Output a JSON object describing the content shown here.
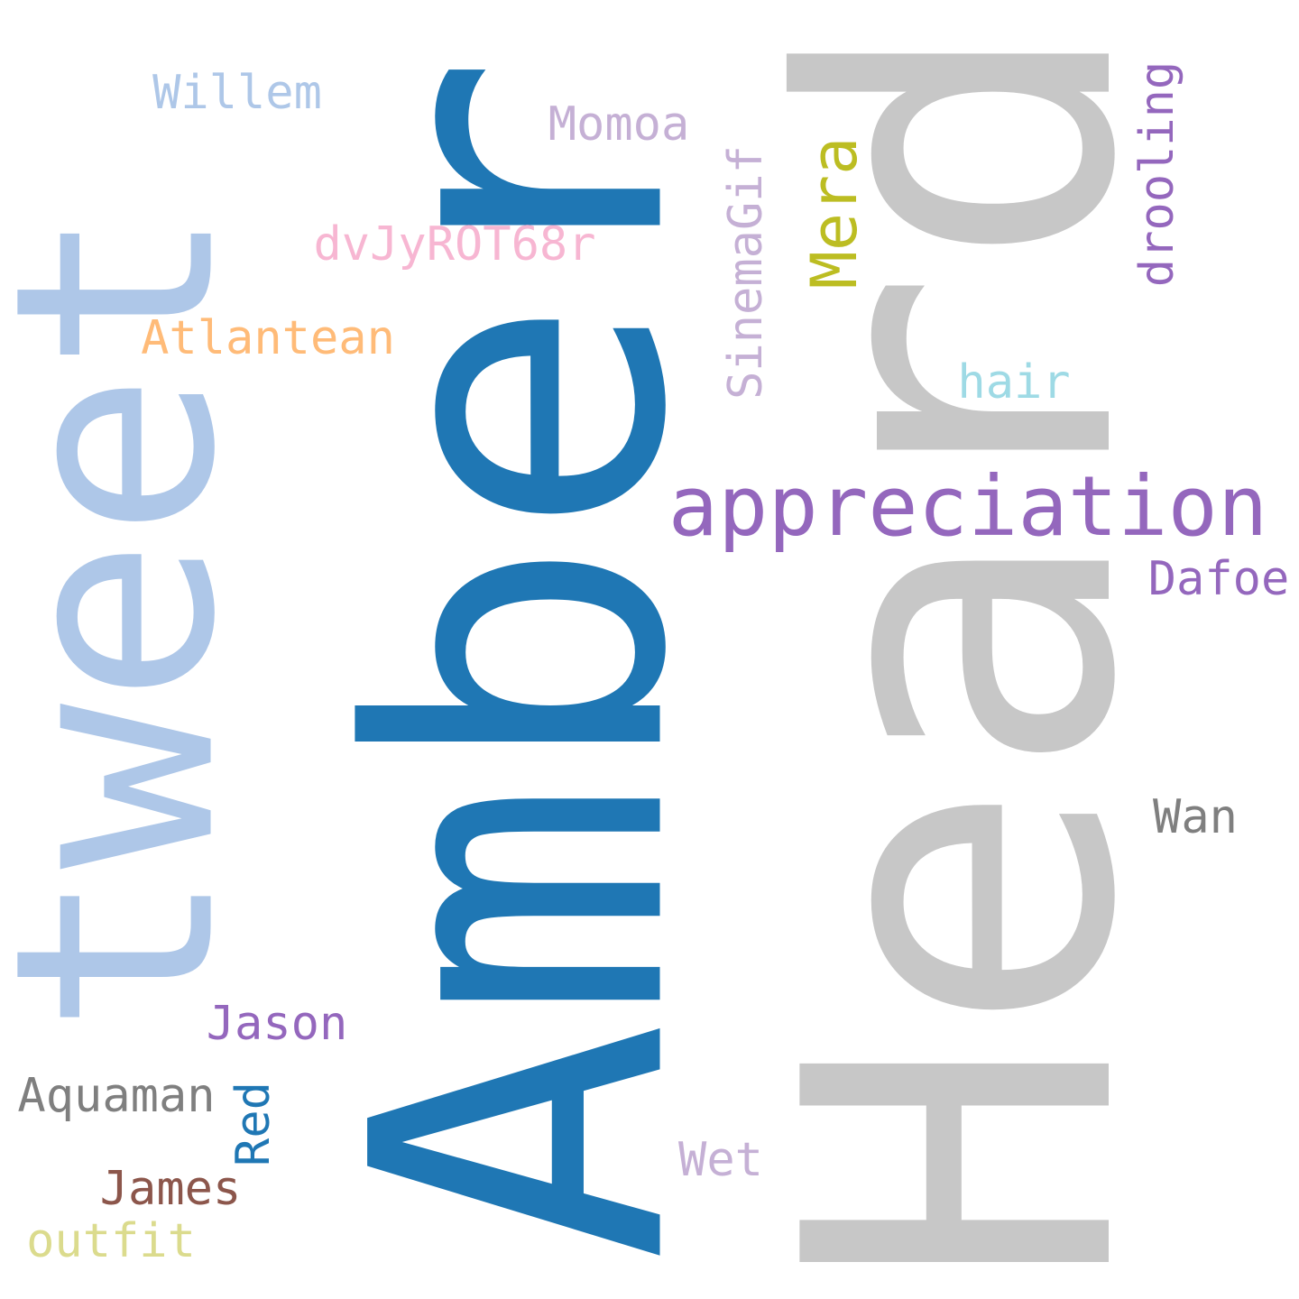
{
  "words": [
    {
      "text": "Heard",
      "color": "#c7c7c7"
    },
    {
      "text": "Amber",
      "color": "#1f77b4"
    },
    {
      "text": "tweet",
      "color": "#aec7e8"
    },
    {
      "text": "appreciation",
      "color": "#9467bd"
    },
    {
      "text": "Willem",
      "color": "#aec7e8"
    },
    {
      "text": "Momoa",
      "color": "#c5b0d5"
    },
    {
      "text": "dvJyROT68r",
      "color": "#f7b6d2"
    },
    {
      "text": "SinemaGif",
      "color": "#c5b0d5"
    },
    {
      "text": "Mera",
      "color": "#bcbd22"
    },
    {
      "text": "drooling",
      "color": "#9467bd"
    },
    {
      "text": "Atlantean",
      "color": "#ffbb78"
    },
    {
      "text": "hair",
      "color": "#9edae5"
    },
    {
      "text": "Dafoe",
      "color": "#9467bd"
    },
    {
      "text": "Wan",
      "color": "#7f7f7f"
    },
    {
      "text": "Jason",
      "color": "#9467bd"
    },
    {
      "text": "Aquaman",
      "color": "#7f7f7f"
    },
    {
      "text": "Red",
      "color": "#1f77b4"
    },
    {
      "text": "James",
      "color": "#8c564b"
    },
    {
      "text": "outfit",
      "color": "#dbdb8d"
    },
    {
      "text": "Wet",
      "color": "#c5b0d5"
    }
  ]
}
